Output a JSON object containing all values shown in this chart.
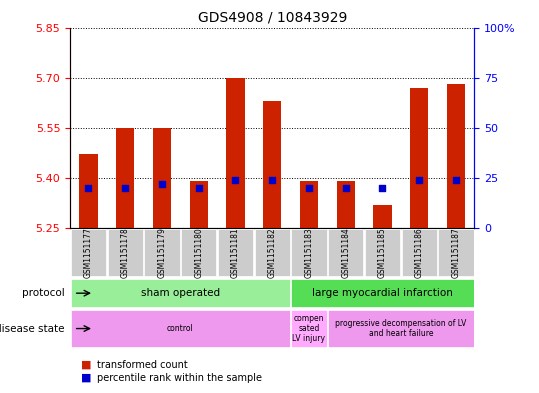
{
  "title": "GDS4908 / 10843929",
  "samples": [
    "GSM1151177",
    "GSM1151178",
    "GSM1151179",
    "GSM1151180",
    "GSM1151181",
    "GSM1151182",
    "GSM1151183",
    "GSM1151184",
    "GSM1151185",
    "GSM1151186",
    "GSM1151187"
  ],
  "transformed_count": [
    5.47,
    5.55,
    5.55,
    5.39,
    5.7,
    5.63,
    5.39,
    5.39,
    5.32,
    5.67,
    5.68
  ],
  "percentile_rank": [
    20,
    20,
    22,
    20,
    24,
    24,
    20,
    20,
    20,
    24,
    24
  ],
  "ylim_left": [
    5.25,
    5.85
  ],
  "ylim_right": [
    0,
    100
  ],
  "yticks_left": [
    5.25,
    5.4,
    5.55,
    5.7,
    5.85
  ],
  "yticks_right": [
    0,
    25,
    50,
    75,
    100
  ],
  "bar_color": "#cc2200",
  "dot_color": "#0000cc",
  "bg_color": "#ffffff",
  "prot_groups": [
    {
      "label": "sham operated",
      "start": 0,
      "end": 5,
      "color": "#99ee99"
    },
    {
      "label": "large myocardial infarction",
      "start": 6,
      "end": 10,
      "color": "#55dd55"
    }
  ],
  "dis_groups": [
    {
      "label": "control",
      "start": 0,
      "end": 5,
      "color": "#ee99ee"
    },
    {
      "label": "compen\nsated\nLV injury",
      "start": 6,
      "end": 6,
      "color": "#ffaaff"
    },
    {
      "label": "progressive decompensation of LV\nand heart failure",
      "start": 7,
      "end": 10,
      "color": "#ee99ee"
    }
  ]
}
